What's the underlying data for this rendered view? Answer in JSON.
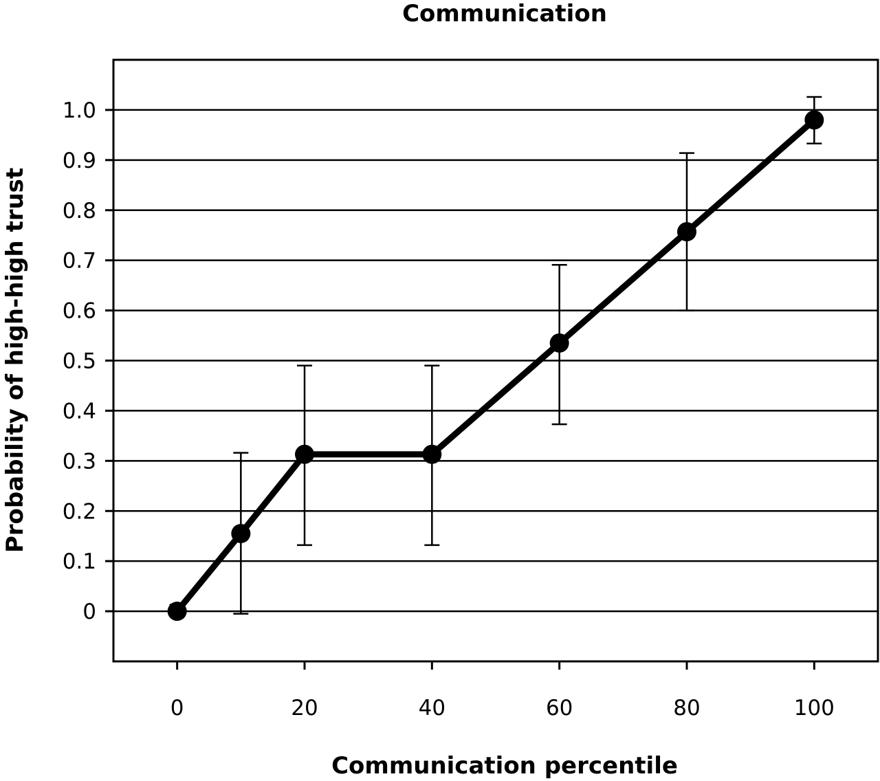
{
  "chart_data": {
    "type": "line",
    "title": "Communication",
    "xlabel": "Communication percentile",
    "ylabel": "Probability of high-high trust",
    "xlim": [
      -10,
      110
    ],
    "ylim": [
      -0.1,
      1.1
    ],
    "x_ticks": [
      0,
      20,
      40,
      60,
      80,
      100
    ],
    "y_ticks": [
      0,
      0.1,
      0.2,
      0.3,
      0.4,
      0.5,
      0.6,
      0.7,
      0.8,
      0.9,
      1.0
    ],
    "x_tick_labels": [
      "0",
      "20",
      "40",
      "60",
      "80",
      "100"
    ],
    "y_tick_labels": [
      "0",
      "0.1",
      "0.2",
      "0.3",
      "0.4",
      "0.5",
      "0.6",
      "0.7",
      "0.8",
      "0.9",
      "1.0"
    ],
    "grid": "horizontal",
    "series": [
      {
        "x": [
          0,
          10,
          20,
          40,
          60,
          80,
          100
        ],
        "y": [
          0.0,
          0.155,
          0.313,
          0.313,
          0.535,
          0.757,
          0.98
        ],
        "err_low": [
          -0.01,
          -0.005,
          0.132,
          0.132,
          0.373,
          0.6,
          0.933
        ],
        "err_high": [
          0.013,
          0.316,
          0.49,
          0.49,
          0.691,
          0.914,
          1.026
        ]
      }
    ]
  }
}
